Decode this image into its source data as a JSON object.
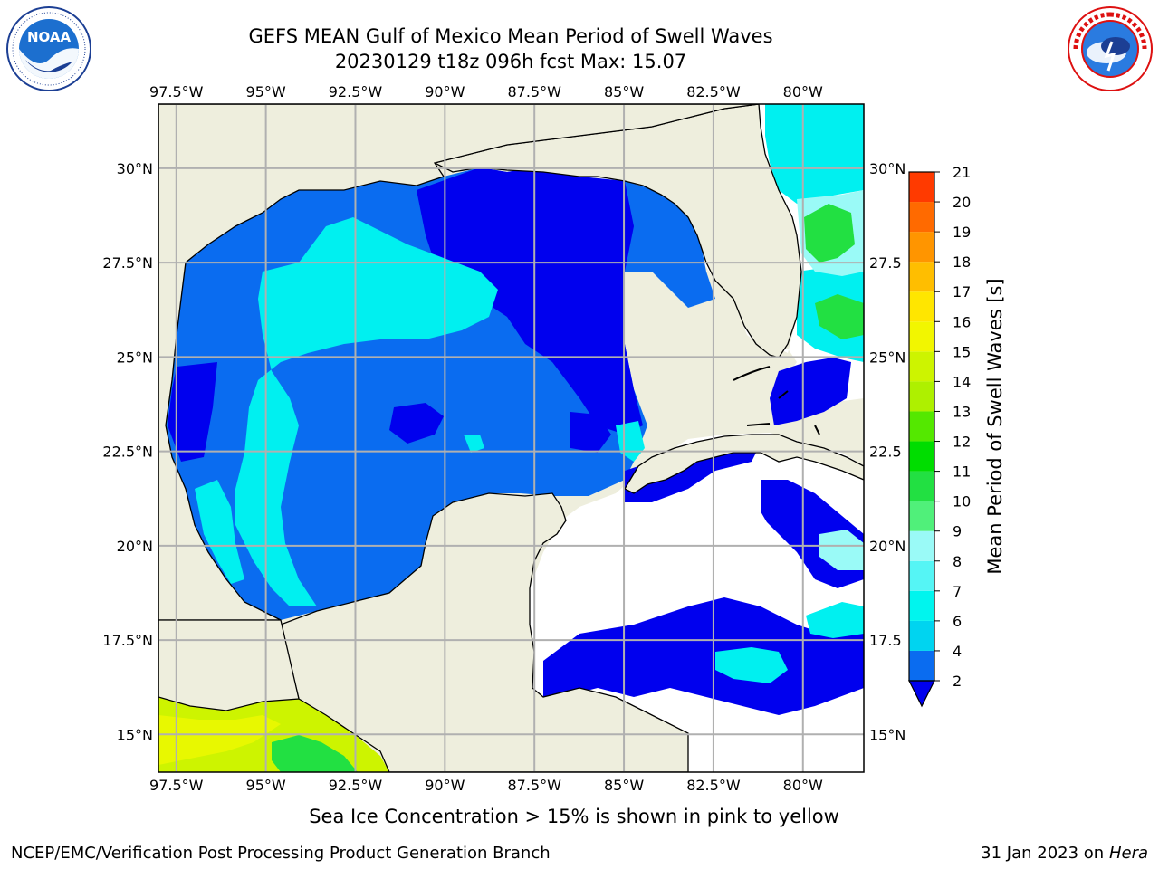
{
  "title": {
    "line1": "GEFS MEAN Gulf of Mexico Mean Period of Swell Waves",
    "line2": "20230129 t18z 096h fcst   Max: 15.07"
  },
  "logos": {
    "left": {
      "name": "noaa-logo",
      "text": "NOAA",
      "ring_text": "NATIONAL OCEANIC AND ATMOSPHERIC ADMINISTRATION · U.S. DEPARTMENT OF COMMERCE"
    },
    "right": {
      "name": "nws-logo",
      "ring_text": "NATIONAL WEATHER SERVICE"
    }
  },
  "map": {
    "lon_labels": [
      "97.5°W",
      "95°W",
      "92.5°W",
      "90°W",
      "87.5°W",
      "85°W",
      "82.5°W",
      "80°W"
    ],
    "lon_values": [
      -97.5,
      -95,
      -92.5,
      -90,
      -87.5,
      -85,
      -82.5,
      -80
    ],
    "lat_labels_left": [
      "30°N",
      "27.5°N",
      "25°N",
      "22.5°N",
      "20°N",
      "17.5°N",
      "15°N"
    ],
    "lat_labels_right": [
      "30°N",
      "27.5",
      "25°N",
      "22.5",
      "20°N",
      "17.5",
      "15°N"
    ],
    "lat_values": [
      30,
      27.5,
      25,
      22.5,
      20,
      17.5,
      15
    ],
    "lon_range": [
      -98,
      -78.3
    ],
    "lat_range": [
      14,
      31.7
    ],
    "land_color": "#eeeedd",
    "grid_color": "#b0b0b0"
  },
  "colorbar": {
    "label": "Mean Period of Swell Waves [s]",
    "ticks": [
      "2",
      "4",
      "6",
      "7",
      "8",
      "9",
      "10",
      "11",
      "12",
      "13",
      "14",
      "15",
      "16",
      "17",
      "18",
      "19",
      "20",
      "21"
    ],
    "colors": [
      "#0a6cf0",
      "#00d4f0",
      "#00f5ee",
      "#55f5f5",
      "#9afaf7",
      "#50f07a",
      "#22e042",
      "#00dd00",
      "#54e800",
      "#aef000",
      "#cdf400",
      "#f2f600",
      "#ffe600",
      "#ffbe00",
      "#ff9500",
      "#ff6a00",
      "#ff3a00",
      "#ff0000"
    ],
    "extend_color": "#0000ee"
  },
  "colors": {
    "period_2_4": "#0000ee",
    "period_4_6": "#0a6cf0",
    "period_6_7": "#00f0f0",
    "period_8_9": "#9afaf7",
    "period_10_11": "#22e042",
    "period_13_14": "#cdf400",
    "period_14_15": "#e8f800"
  },
  "notes": {
    "ice": "Sea Ice Concentration > 15% is shown in pink to yellow"
  },
  "footer": {
    "left": "NCEP/EMC/Verification Post Processing Product Generation Branch",
    "right_date": "31 Jan 2023 on ",
    "right_host": "Hera"
  }
}
